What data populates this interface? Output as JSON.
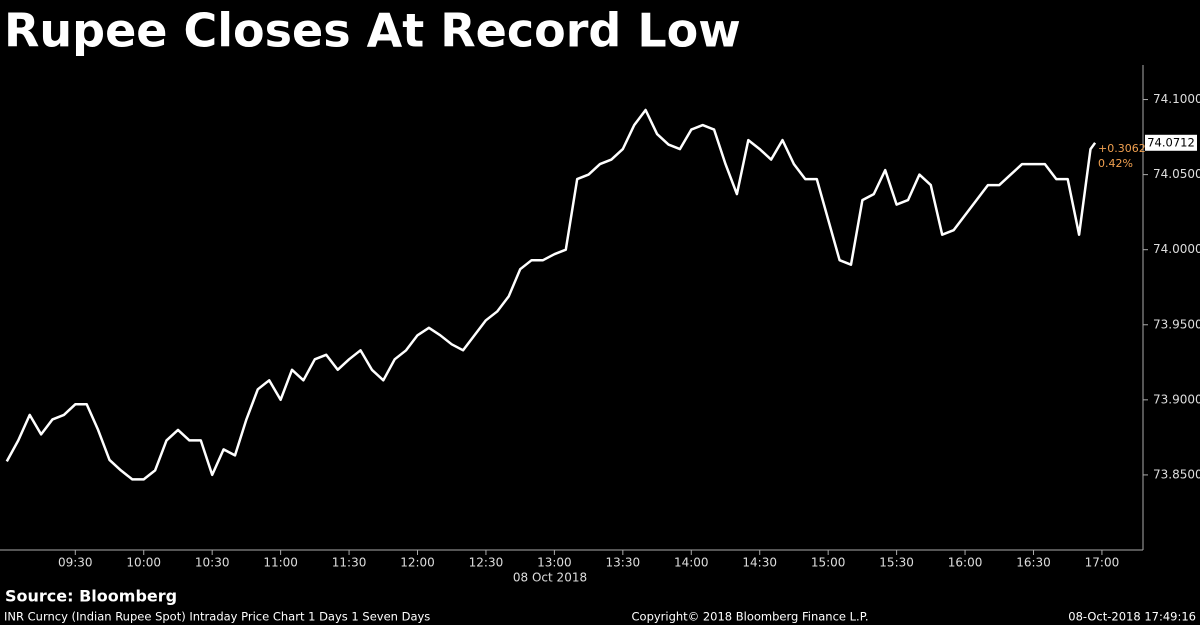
{
  "chart_data": {
    "type": "line",
    "title": "Rupee Closes At Record Low",
    "x_label": "08 Oct 2018",
    "color": "#ffffff",
    "x": [
      "09:00",
      "09:05",
      "09:10",
      "09:15",
      "09:20",
      "09:25",
      "09:30",
      "09:35",
      "09:40",
      "09:45",
      "09:50",
      "09:55",
      "10:00",
      "10:05",
      "10:10",
      "10:15",
      "10:20",
      "10:25",
      "10:30",
      "10:35",
      "10:40",
      "10:45",
      "10:50",
      "10:55",
      "11:00",
      "11:05",
      "11:10",
      "11:15",
      "11:20",
      "11:25",
      "11:30",
      "11:35",
      "11:40",
      "11:45",
      "11:50",
      "11:55",
      "12:00",
      "12:05",
      "12:10",
      "12:15",
      "12:20",
      "12:25",
      "12:30",
      "12:35",
      "12:40",
      "12:45",
      "12:50",
      "12:55",
      "13:00",
      "13:05",
      "13:10",
      "13:15",
      "13:20",
      "13:25",
      "13:30",
      "13:35",
      "13:40",
      "13:45",
      "13:50",
      "13:55",
      "14:00",
      "14:05",
      "14:10",
      "14:15",
      "14:20",
      "14:25",
      "14:30",
      "14:35",
      "14:40",
      "14:45",
      "14:50",
      "14:55",
      "15:00",
      "15:05",
      "15:10",
      "15:15",
      "15:20",
      "15:25",
      "15:30",
      "15:35",
      "15:40",
      "15:45",
      "15:50",
      "15:55",
      "16:00",
      "16:05",
      "16:10",
      "16:15",
      "16:20",
      "16:25",
      "16:30",
      "16:35",
      "16:40",
      "16:45",
      "16:50",
      "16:55",
      "16:57"
    ],
    "values": [
      73.859,
      73.873,
      73.89,
      73.877,
      73.887,
      73.89,
      73.897,
      73.897,
      73.88,
      73.86,
      73.853,
      73.847,
      73.847,
      73.853,
      73.873,
      73.88,
      73.873,
      73.873,
      73.85,
      73.867,
      73.863,
      73.887,
      73.907,
      73.913,
      73.9,
      73.92,
      73.913,
      73.927,
      73.93,
      73.92,
      73.927,
      73.933,
      73.92,
      73.913,
      73.927,
      73.933,
      73.943,
      73.948,
      73.943,
      73.937,
      73.933,
      73.943,
      73.953,
      73.959,
      73.969,
      73.987,
      73.993,
      73.993,
      73.997,
      74.0,
      74.047,
      74.05,
      74.057,
      74.06,
      74.067,
      74.083,
      74.093,
      74.077,
      74.07,
      74.067,
      74.08,
      74.083,
      74.08,
      74.057,
      74.037,
      74.073,
      74.067,
      74.06,
      74.073,
      74.057,
      74.047,
      74.047,
      74.02,
      73.993,
      73.99,
      74.033,
      74.037,
      74.053,
      74.03,
      74.033,
      74.05,
      74.043,
      74.01,
      74.013,
      74.023,
      74.033,
      74.043,
      74.043,
      74.05,
      74.057,
      74.057,
      74.057,
      74.047,
      74.047,
      74.01,
      74.067,
      74.0712
    ],
    "xlim": [
      "08:57",
      "17:18"
    ],
    "xticks": [
      "09:30",
      "10:00",
      "10:30",
      "11:00",
      "11:30",
      "12:00",
      "12:30",
      "13:00",
      "13:30",
      "14:00",
      "14:30",
      "15:00",
      "15:30",
      "16:00",
      "16:30",
      "17:00"
    ],
    "ylim": [
      73.8,
      74.123
    ],
    "yticks": [
      {
        "value": 73.85,
        "label": "73.8500"
      },
      {
        "value": 73.9,
        "label": "73.9000"
      },
      {
        "value": 73.95,
        "label": "73.9500"
      },
      {
        "value": 74.0,
        "label": "74.0000"
      },
      {
        "value": 74.05,
        "label": "74.0500"
      },
      {
        "value": 74.1,
        "label": "74.1000"
      }
    ],
    "last_value": 74.0712,
    "change": "+0.3062",
    "change_pct": "0.42%",
    "change_color": "#f0a050",
    "source": "Source: Bloomberg",
    "footer_left": "INR Curncy (Indian Rupee Spot) Intraday Price Chart 1 Days 1 Seven Days",
    "footer_center": "Copyright© 2018 Bloomberg Finance L.P.",
    "footer_right": "08-Oct-2018 17:49:16"
  }
}
